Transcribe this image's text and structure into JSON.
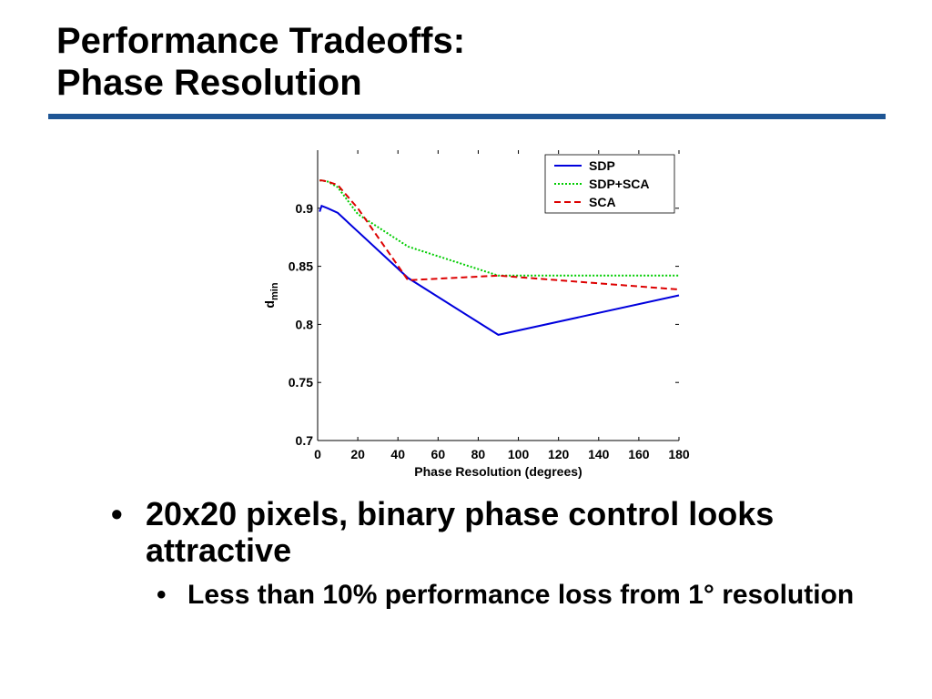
{
  "slide": {
    "title_line1": "Performance Tradeoffs:",
    "title_line2": "Phase Resolution",
    "accent_color": "#1f5695"
  },
  "bullets": {
    "glyph": "•",
    "main": "20x20 pixels, binary phase control looks attractive",
    "sub": "Less than 10% performance loss from 1° resolution"
  },
  "chart_data": {
    "type": "line",
    "xlabel": "Phase Resolution (degrees)",
    "ylabel": "d",
    "ylabel_sub": "min",
    "xlim": [
      0,
      180
    ],
    "ylim": [
      0.7,
      0.95
    ],
    "xticks": [
      0,
      20,
      40,
      60,
      80,
      100,
      120,
      140,
      160,
      180
    ],
    "yticks": [
      0.7,
      0.75,
      0.8,
      0.85,
      0.9
    ],
    "ytick_labels": [
      "0.7",
      "0.75",
      "0.8",
      "0.85",
      "0.9"
    ],
    "grid": false,
    "legend_position": "top-right",
    "series": [
      {
        "name": "SDP",
        "color": "#0000dd",
        "style": "solid",
        "x": [
          1,
          2,
          5,
          10,
          20,
          45,
          90,
          180
        ],
        "y": [
          0.897,
          0.902,
          0.9,
          0.896,
          0.88,
          0.84,
          0.791,
          0.825
        ]
      },
      {
        "name": "SDP+SCA",
        "color": "#00cc00",
        "style": "dotted",
        "x": [
          1,
          2,
          5,
          10,
          20,
          45,
          90,
          180
        ],
        "y": [
          0.924,
          0.924,
          0.923,
          0.918,
          0.895,
          0.867,
          0.842,
          0.842
        ]
      },
      {
        "name": "SCA",
        "color": "#dd0000",
        "style": "dashed",
        "x": [
          1,
          2,
          5,
          10,
          20,
          45,
          90,
          180
        ],
        "y": [
          0.924,
          0.924,
          0.923,
          0.92,
          0.9,
          0.838,
          0.842,
          0.83
        ]
      }
    ]
  }
}
